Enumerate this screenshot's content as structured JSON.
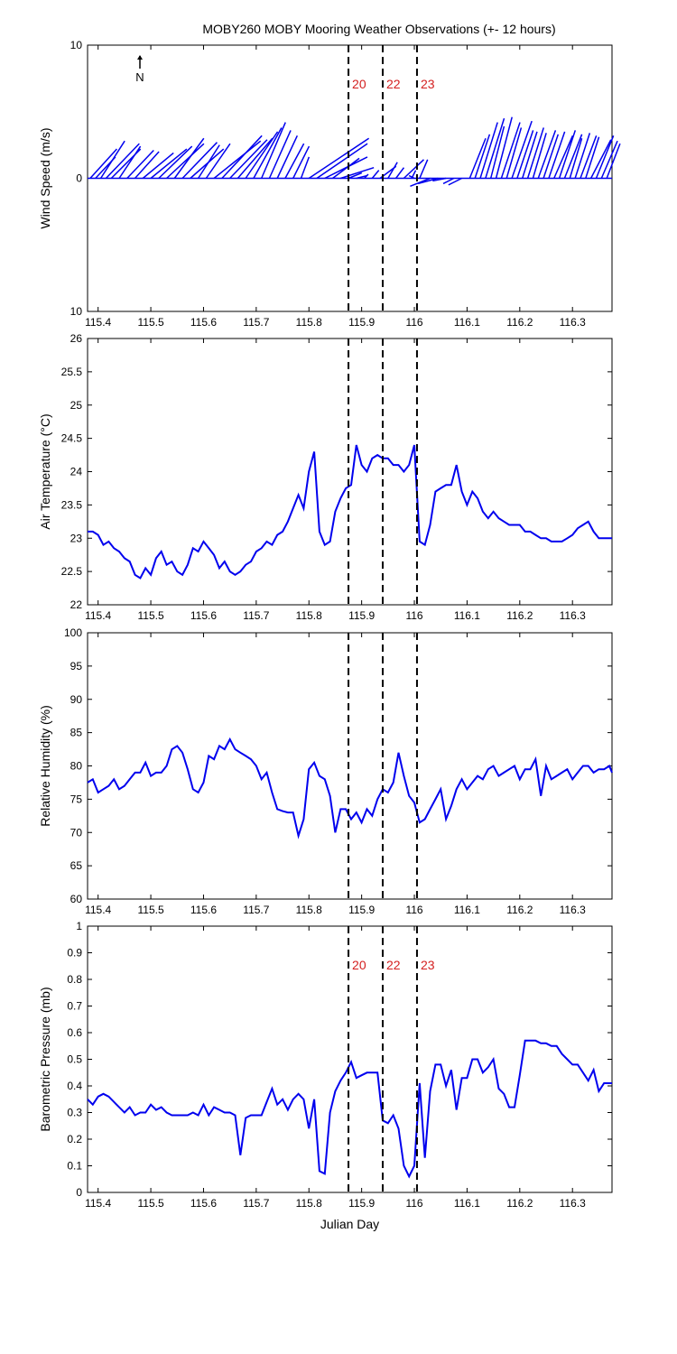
{
  "figure": {
    "title": "MOBY260 MOBY Mooring Weather Observations (+- 12 hours)",
    "north_label": "N",
    "xlabel": "Julian Day",
    "xlim": [
      115.38,
      116.375
    ],
    "xticks": [
      115.4,
      115.5,
      115.6,
      115.7,
      115.8,
      115.9,
      116,
      116.1,
      116.2,
      116.3
    ],
    "xtick_labels": [
      "115.4",
      "115.5",
      "115.6",
      "115.7",
      "115.8",
      "115.9",
      "116",
      "116.1",
      "116.2",
      "116.3"
    ],
    "markers": [
      {
        "x": 115.875,
        "label": "20"
      },
      {
        "x": 115.94,
        "label": "22"
      },
      {
        "x": 116.005,
        "label": "23"
      }
    ],
    "colors": {
      "series": "#0000ee",
      "marker_label": "#d42020",
      "marker_line": "#000000",
      "axes": "#000000"
    }
  },
  "chart_data": [
    {
      "type": "line",
      "name": "wind-vectors",
      "ylabel": "Wind Speed (m/s)",
      "ylim": [
        -10,
        10
      ],
      "ytick_labels": [
        "10",
        "0",
        "10"
      ],
      "yticks": [
        10,
        0,
        -10
      ],
      "note": "wind vectors: u = eastward, v = northward (m/s)",
      "x": [
        115.385,
        115.395,
        115.405,
        115.415,
        115.425,
        115.44,
        115.455,
        115.47,
        115.485,
        115.5,
        115.515,
        115.53,
        115.545,
        115.56,
        115.575,
        115.59,
        115.605,
        115.62,
        115.635,
        115.65,
        115.665,
        115.68,
        115.695,
        115.71,
        115.725,
        115.74,
        115.755,
        115.77,
        115.785,
        115.8,
        115.815,
        115.83,
        115.845,
        115.86,
        115.875,
        115.89,
        115.905,
        115.92,
        115.935,
        115.95,
        115.965,
        115.98,
        115.995,
        116.0,
        116.01,
        116.03,
        116.045,
        116.06,
        116.075,
        116.09,
        116.105,
        116.115,
        116.125,
        116.135,
        116.145,
        116.155,
        116.165,
        116.175,
        116.185,
        116.195,
        116.205,
        116.215,
        116.225,
        116.235,
        116.245,
        116.255,
        116.265,
        116.275,
        116.285,
        116.295,
        116.305,
        116.315,
        116.325,
        116.335,
        116.345,
        116.355,
        116.365
      ],
      "u": [
        2.0,
        1.5,
        1.8,
        2.5,
        2.2,
        1.6,
        2.0,
        1.8,
        2.3,
        2.7,
        2.5,
        2.8,
        2.2,
        2.6,
        2.5,
        1.6,
        1.8,
        3.5,
        3.0,
        2.8,
        2.6,
        2.4,
        2.1,
        1.8,
        1.6,
        1.5,
        1.4,
        1.2,
        0.6,
        4.5,
        3.8,
        3.2,
        2.0,
        2.5,
        1.0,
        0.8,
        0.3,
        0.5,
        1.2,
        0.7,
        0.6,
        1.5,
        0.3,
        -0.4,
        0.6,
        -1.5,
        -1.5,
        -1.0,
        -0.8,
        -1.0,
        1.2,
        1.1,
        1.3,
        1.4,
        1.0,
        1.2,
        1.4,
        1.1,
        1.5,
        1.2,
        1.1,
        1.2,
        1.0,
        1.3,
        1.1,
        1.2,
        1.4,
        1.2,
        1.3,
        0.9,
        1.1,
        1.2,
        1.0,
        1.5,
        1.3,
        1.2,
        1.0
      ],
      "v": [
        2.2,
        1.6,
        2.8,
        2.6,
        2.2,
        2.4,
        2.1,
        2.0,
        1.9,
        2.2,
        2.4,
        2.6,
        3.0,
        2.7,
        2.2,
        2.5,
        2.6,
        2.8,
        3.2,
        2.9,
        3.0,
        3.5,
        3.8,
        4.2,
        3.6,
        3.2,
        2.6,
        2.4,
        1.6,
        3.0,
        2.6,
        1.6,
        1.5,
        0.8,
        0.4,
        0.2,
        0.3,
        0.6,
        0.9,
        1.2,
        0.8,
        1.4,
        0.6,
        0.2,
        1.4,
        -0.6,
        -0.4,
        -0.2,
        -0.4,
        -0.5,
        3.0,
        3.3,
        4.2,
        4.5,
        3.9,
        4.6,
        4.2,
        3.8,
        4.3,
        3.6,
        3.5,
        3.8,
        3.4,
        3.6,
        3.3,
        3.5,
        3.2,
        3.6,
        3.3,
        3.0,
        3.4,
        3.2,
        3.1,
        2.9,
        3.2,
        2.8,
        2.6
      ]
    },
    {
      "type": "line",
      "name": "air-temperature",
      "ylabel": "Air Temperature (°C)",
      "ylim": [
        22,
        26
      ],
      "yticks": [
        22,
        22.5,
        23,
        23.5,
        24,
        24.5,
        25,
        25.5,
        26
      ],
      "ytick_labels": [
        "22",
        "22.5",
        "23",
        "23.5",
        "24",
        "24.5",
        "25",
        "25.5",
        "26"
      ],
      "x": [
        115.38,
        115.39,
        115.4,
        115.41,
        115.42,
        115.43,
        115.44,
        115.45,
        115.46,
        115.47,
        115.48,
        115.49,
        115.5,
        115.51,
        115.52,
        115.53,
        115.54,
        115.55,
        115.56,
        115.57,
        115.58,
        115.59,
        115.6,
        115.61,
        115.62,
        115.63,
        115.64,
        115.65,
        115.66,
        115.67,
        115.68,
        115.69,
        115.7,
        115.71,
        115.72,
        115.73,
        115.74,
        115.75,
        115.76,
        115.77,
        115.78,
        115.79,
        115.8,
        115.81,
        115.82,
        115.83,
        115.84,
        115.85,
        115.86,
        115.87,
        115.88,
        115.89,
        115.9,
        115.91,
        115.92,
        115.93,
        115.94,
        115.95,
        115.96,
        115.97,
        115.98,
        115.99,
        116.0,
        116.01,
        116.02,
        116.03,
        116.04,
        116.05,
        116.06,
        116.07,
        116.08,
        116.09,
        116.1,
        116.11,
        116.12,
        116.13,
        116.14,
        116.15,
        116.16,
        116.17,
        116.18,
        116.19,
        116.2,
        116.21,
        116.22,
        116.23,
        116.24,
        116.25,
        116.26,
        116.27,
        116.28,
        116.29,
        116.3,
        116.31,
        116.32,
        116.33,
        116.34,
        116.35,
        116.36,
        116.37,
        116.375
      ],
      "values": [
        23.1,
        23.1,
        23.05,
        22.9,
        22.95,
        22.85,
        22.8,
        22.7,
        22.65,
        22.45,
        22.4,
        22.55,
        22.45,
        22.7,
        22.8,
        22.6,
        22.65,
        22.5,
        22.45,
        22.6,
        22.85,
        22.8,
        22.95,
        22.85,
        22.75,
        22.55,
        22.65,
        22.5,
        22.45,
        22.5,
        22.6,
        22.65,
        22.8,
        22.85,
        22.95,
        22.9,
        23.05,
        23.1,
        23.25,
        23.45,
        23.65,
        23.45,
        24.0,
        24.3,
        23.1,
        22.9,
        22.95,
        23.4,
        23.6,
        23.75,
        23.8,
        24.4,
        24.1,
        24.0,
        24.2,
        24.25,
        24.2,
        24.2,
        24.1,
        24.1,
        24.0,
        24.1,
        24.4,
        22.95,
        22.9,
        23.2,
        23.7,
        23.75,
        23.8,
        23.8,
        24.1,
        23.7,
        23.5,
        23.7,
        23.6,
        23.4,
        23.3,
        23.4,
        23.3,
        23.25,
        23.2,
        23.2,
        23.2,
        23.1,
        23.1,
        23.05,
        23.0,
        23.0,
        22.95,
        22.95,
        22.95,
        23.0,
        23.05,
        23.15,
        23.2,
        23.25,
        23.1,
        23.0,
        23.0,
        23.0,
        23.0
      ],
      "values_note": "approximate read-off"
    },
    {
      "type": "line",
      "name": "relative-humidity",
      "ylabel": "Relative Humidity (%)",
      "ylim": [
        60,
        100
      ],
      "yticks": [
        60,
        65,
        70,
        75,
        80,
        85,
        90,
        95,
        100
      ],
      "ytick_labels": [
        "60",
        "65",
        "70",
        "75",
        "80",
        "85",
        "90",
        "95",
        "100"
      ],
      "x": [
        115.38,
        115.39,
        115.4,
        115.41,
        115.42,
        115.43,
        115.44,
        115.45,
        115.46,
        115.47,
        115.48,
        115.49,
        115.5,
        115.51,
        115.52,
        115.53,
        115.54,
        115.55,
        115.56,
        115.57,
        115.58,
        115.59,
        115.6,
        115.61,
        115.62,
        115.63,
        115.64,
        115.65,
        115.66,
        115.67,
        115.68,
        115.69,
        115.7,
        115.71,
        115.72,
        115.73,
        115.74,
        115.75,
        115.76,
        115.77,
        115.78,
        115.79,
        115.8,
        115.81,
        115.82,
        115.83,
        115.84,
        115.85,
        115.86,
        115.87,
        115.88,
        115.89,
        115.9,
        115.91,
        115.92,
        115.93,
        115.94,
        115.95,
        115.96,
        115.97,
        115.98,
        115.99,
        116.0,
        116.01,
        116.02,
        116.03,
        116.04,
        116.05,
        116.06,
        116.07,
        116.08,
        116.09,
        116.1,
        116.11,
        116.12,
        116.13,
        116.14,
        116.15,
        116.16,
        116.17,
        116.18,
        116.19,
        116.2,
        116.21,
        116.22,
        116.23,
        116.24,
        116.25,
        116.26,
        116.27,
        116.28,
        116.29,
        116.3,
        116.31,
        116.32,
        116.33,
        116.34,
        116.35,
        116.36,
        116.37,
        116.375
      ],
      "values": [
        77.5,
        78.0,
        76.0,
        76.5,
        77.0,
        78.0,
        76.5,
        77.0,
        78.0,
        79.0,
        79.0,
        80.5,
        78.5,
        79.0,
        79.0,
        80.0,
        82.5,
        83.0,
        82.0,
        79.5,
        76.5,
        76.0,
        77.5,
        81.5,
        81.0,
        83.0,
        82.5,
        84.0,
        82.5,
        82.0,
        81.5,
        81.0,
        80.0,
        78.0,
        79.0,
        76.0,
        73.5,
        73.2,
        73.0,
        73.0,
        69.5,
        72.0,
        79.5,
        80.5,
        78.5,
        78.0,
        75.5,
        70.0,
        73.5,
        73.5,
        72.0,
        73.0,
        71.5,
        73.5,
        72.5,
        75.0,
        76.5,
        76.0,
        77.5,
        82.0,
        78.5,
        75.5,
        74.5,
        71.5,
        72.0,
        73.5,
        75.0,
        76.5,
        72.0,
        74.0,
        76.5,
        78.0,
        76.5,
        77.5,
        78.5,
        78.0,
        79.5,
        80.0,
        78.5,
        79.0,
        79.5,
        80.0,
        78.0,
        79.5,
        79.5,
        81.0,
        75.5,
        80.0,
        78.0,
        78.5,
        79.0,
        79.5,
        78.0,
        79.0,
        80.0,
        80.0,
        79.0,
        79.5,
        79.5,
        80.0,
        79.0
      ],
      "values_note": "approximate read-off"
    },
    {
      "type": "line",
      "name": "barometric-pressure",
      "ylabel": "Barometric Pressure (mb)",
      "ylim": [
        0,
        1
      ],
      "yticks": [
        0,
        0.1,
        0.2,
        0.3,
        0.4,
        0.5,
        0.6,
        0.7,
        0.8,
        0.9,
        1
      ],
      "ytick_labels": [
        "0",
        "0.1",
        "0.2",
        "0.3",
        "0.4",
        "0.5",
        "0.6",
        "0.7",
        "0.8",
        "0.9",
        "1"
      ],
      "x": [
        115.38,
        115.39,
        115.4,
        115.41,
        115.42,
        115.43,
        115.44,
        115.45,
        115.46,
        115.47,
        115.48,
        115.49,
        115.5,
        115.51,
        115.52,
        115.53,
        115.54,
        115.55,
        115.56,
        115.57,
        115.58,
        115.59,
        115.6,
        115.61,
        115.62,
        115.63,
        115.64,
        115.65,
        115.66,
        115.67,
        115.68,
        115.69,
        115.7,
        115.71,
        115.72,
        115.73,
        115.74,
        115.75,
        115.76,
        115.77,
        115.78,
        115.79,
        115.8,
        115.81,
        115.82,
        115.83,
        115.84,
        115.85,
        115.86,
        115.87,
        115.88,
        115.89,
        115.9,
        115.91,
        115.92,
        115.93,
        115.94,
        115.95,
        115.96,
        115.97,
        115.98,
        115.99,
        116.0,
        116.01,
        116.02,
        116.03,
        116.04,
        116.05,
        116.06,
        116.07,
        116.08,
        116.09,
        116.1,
        116.11,
        116.12,
        116.13,
        116.14,
        116.15,
        116.16,
        116.17,
        116.18,
        116.19,
        116.2,
        116.21,
        116.22,
        116.23,
        116.24,
        116.25,
        116.26,
        116.27,
        116.28,
        116.29,
        116.3,
        116.31,
        116.32,
        116.33,
        116.34,
        116.35,
        116.36,
        116.37,
        116.375
      ],
      "values": [
        0.35,
        0.33,
        0.36,
        0.37,
        0.36,
        0.34,
        0.32,
        0.3,
        0.32,
        0.29,
        0.3,
        0.3,
        0.33,
        0.31,
        0.32,
        0.3,
        0.29,
        0.29,
        0.29,
        0.29,
        0.3,
        0.29,
        0.33,
        0.29,
        0.32,
        0.31,
        0.3,
        0.3,
        0.29,
        0.14,
        0.28,
        0.29,
        0.29,
        0.29,
        0.34,
        0.39,
        0.33,
        0.35,
        0.31,
        0.35,
        0.37,
        0.35,
        0.24,
        0.35,
        0.08,
        0.07,
        0.3,
        0.38,
        0.42,
        0.45,
        0.49,
        0.43,
        0.44,
        0.45,
        0.45,
        0.45,
        0.27,
        0.26,
        0.29,
        0.24,
        0.1,
        0.06,
        0.1,
        0.41,
        0.13,
        0.38,
        0.48,
        0.48,
        0.4,
        0.46,
        0.31,
        0.43,
        0.43,
        0.5,
        0.5,
        0.45,
        0.47,
        0.5,
        0.39,
        0.37,
        0.32,
        0.32,
        0.44,
        0.57,
        0.57,
        0.57,
        0.56,
        0.56,
        0.55,
        0.55,
        0.52,
        0.5,
        0.48,
        0.48,
        0.45,
        0.42,
        0.46,
        0.38,
        0.41,
        0.41,
        0.41
      ],
      "values_note": "approximate read-off"
    }
  ],
  "panels": [
    {
      "name": "wind",
      "show_marker_labels": true
    },
    {
      "name": "temp",
      "show_marker_labels": false
    },
    {
      "name": "rh",
      "show_marker_labels": false
    },
    {
      "name": "pressure",
      "show_marker_labels": true
    }
  ]
}
